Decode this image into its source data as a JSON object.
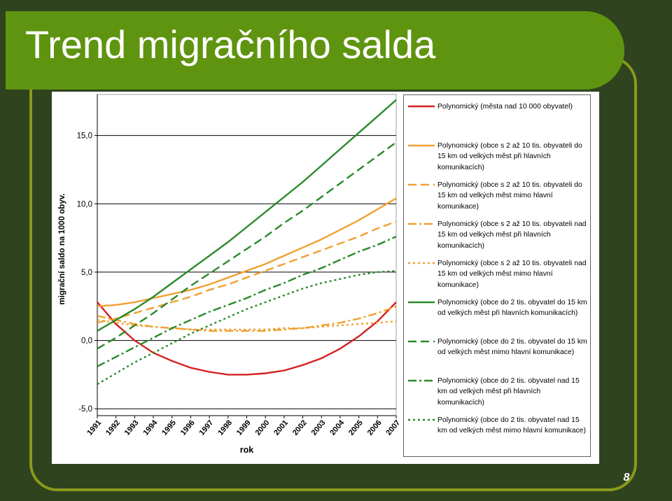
{
  "slide": {
    "title": "Trend migračního salda",
    "page_number": "8",
    "colors": {
      "background": "#2f431f",
      "title_band": "#5f9410",
      "frame": "#8a9a1a",
      "title_text": "#ffffff"
    }
  },
  "chart_data": {
    "type": "line",
    "title": "",
    "xlabel": "rok",
    "ylabel": "migrační saldo na 1000 obyv.",
    "x": [
      "1991",
      "1992",
      "1993",
      "1994",
      "1995",
      "1996",
      "1997",
      "1998",
      "1999",
      "2000",
      "2001",
      "2002",
      "2003",
      "2004",
      "2005",
      "2006",
      "2007"
    ],
    "y_ticks": [
      "-5,0",
      "0,0",
      "5,0",
      "10,0",
      "15,0"
    ],
    "ylim": [
      -5.5,
      18
    ],
    "grid": "horizontal",
    "legend_position": "right",
    "series": [
      {
        "name": "Polynomický (města nad 10 000 obyvatel)",
        "color": "#d42020",
        "style": "solid",
        "values": [
          2.8,
          1.2,
          0.0,
          -0.9,
          -1.5,
          -2.0,
          -2.3,
          -2.5,
          -2.5,
          -2.4,
          -2.2,
          -1.8,
          -1.3,
          -0.6,
          0.3,
          1.4,
          2.8
        ]
      },
      {
        "name": "Polynomický (obce s 2 až 10 tis. obyvateli do 15 km od velkých měst při hlavních komunikacích)",
        "color": "#f0a030",
        "style": "solid",
        "values": [
          2.5,
          2.6,
          2.8,
          3.1,
          3.4,
          3.7,
          4.1,
          4.6,
          5.1,
          5.6,
          6.2,
          6.8,
          7.4,
          8.1,
          8.8,
          9.6,
          10.4
        ]
      },
      {
        "name": "Polynomický (obce s 2 až 10 tis. obyvateli do 15 km od velkých měst mimo hlavní komunikace)",
        "color": "#f0a030",
        "style": "longdash",
        "values": [
          1.3,
          1.6,
          2.0,
          2.4,
          2.8,
          3.2,
          3.7,
          4.1,
          4.6,
          5.1,
          5.6,
          6.1,
          6.6,
          7.1,
          7.6,
          8.2,
          8.7
        ]
      },
      {
        "name": "Polynomický (obce s 2 až 10 tis. obyvateli nad 15 km od velkých měst při hlavních komunikacích)",
        "color": "#f0a030",
        "style": "dashdot",
        "values": [
          1.8,
          1.5,
          1.2,
          1.0,
          0.9,
          0.8,
          0.7,
          0.7,
          0.7,
          0.7,
          0.8,
          0.9,
          1.1,
          1.3,
          1.6,
          2.0,
          2.5
        ]
      },
      {
        "name": "Polynomický (obce s 2 až 10 tis. obyvateli nad 15 km od velkých měst mimo hlavní komunikace)",
        "color": "#f0a030",
        "style": "dotted",
        "values": [
          1.5,
          1.3,
          1.1,
          1.0,
          0.9,
          0.8,
          0.8,
          0.8,
          0.8,
          0.8,
          0.9,
          0.9,
          1.0,
          1.1,
          1.2,
          1.3,
          1.4
        ]
      },
      {
        "name": "Polynomický (obce do 2 tis. obyvatel do 15 km od velkých měst při hlavních komunikacích)",
        "color": "#2a8a2a",
        "style": "solid",
        "values": [
          0.7,
          1.5,
          2.3,
          3.2,
          4.2,
          5.2,
          6.2,
          7.2,
          8.3,
          9.4,
          10.5,
          11.6,
          12.8,
          14.0,
          15.2,
          16.4,
          17.6
        ]
      },
      {
        "name": "Polynomický (obce do 2 tis. obyvatel do 15 km od velkých měst mimo hlavní komunikace)",
        "color": "#2a8a2a",
        "style": "longdash",
        "values": [
          -0.6,
          0.2,
          1.1,
          2.0,
          3.0,
          4.0,
          4.9,
          5.8,
          6.7,
          7.6,
          8.6,
          9.5,
          10.5,
          11.5,
          12.5,
          13.5,
          14.5
        ]
      },
      {
        "name": "Polynomický (obce do 2 tis. obyvatel nad 15 km od velkých měst při hlavních komunikacích)",
        "color": "#2a8a2a",
        "style": "dashdot",
        "values": [
          -1.9,
          -1.2,
          -0.5,
          0.2,
          0.9,
          1.5,
          2.1,
          2.6,
          3.1,
          3.7,
          4.2,
          4.8,
          5.3,
          5.9,
          6.5,
          7.0,
          7.6
        ]
      },
      {
        "name": "Polynomický (obce do 2 tis. obyvatel nad 15 km od velkých měst mimo hlavní komunikace)",
        "color": "#2a8a2a",
        "style": "dotted",
        "values": [
          -3.2,
          -2.4,
          -1.6,
          -0.9,
          -0.2,
          0.5,
          1.1,
          1.7,
          2.3,
          2.8,
          3.3,
          3.8,
          4.2,
          4.5,
          4.8,
          5.0,
          5.1
        ]
      }
    ]
  }
}
